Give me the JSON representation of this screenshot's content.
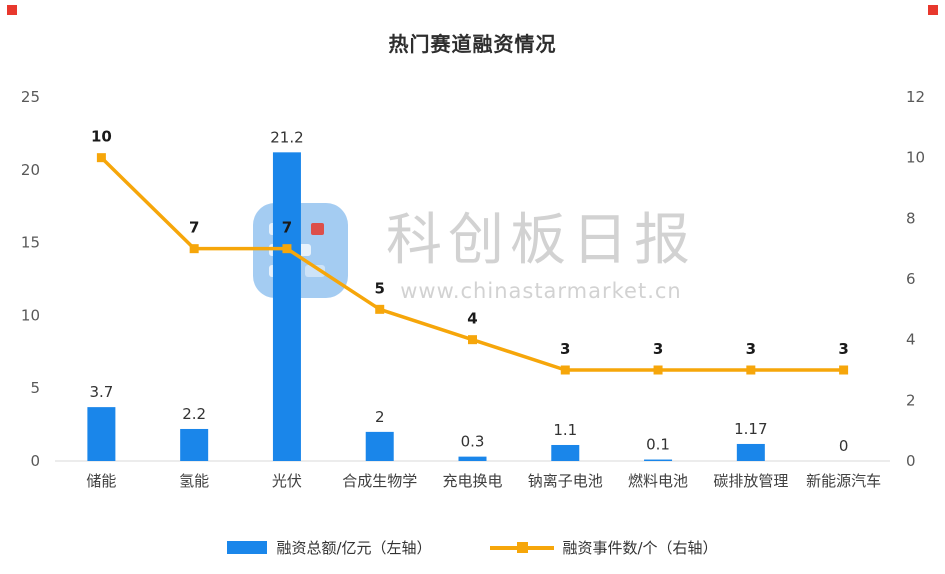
{
  "title": "热门赛道融资情况",
  "colors": {
    "bar": "#1a86ea",
    "line": "#f6a60a",
    "axis_line": "#d9d9d9",
    "tick_text": "#595959",
    "category_text": "#404040",
    "bar_label_text": "#333333",
    "line_label_text": "#1a1a1a",
    "title_text": "#2e2e2e",
    "watermark_text": "#d2d2d2",
    "legend_text": "#333333",
    "corner_mark": "#e8382d"
  },
  "chart_data": {
    "type": "bar+line",
    "title": "热门赛道融资情况",
    "categories": [
      "储能",
      "氢能",
      "光伏",
      "合成生物学",
      "充电换电",
      "钠离子电池",
      "燃料电池",
      "碳排放管理",
      "新能源汽车"
    ],
    "series": [
      {
        "name": "融资总额/亿元（左轴）",
        "type": "bar",
        "axis": "left",
        "values": [
          3.7,
          2.2,
          21.2,
          2,
          0.3,
          1.1,
          0.1,
          1.17,
          0
        ]
      },
      {
        "name": "融资事件数/个（右轴）",
        "type": "line",
        "axis": "right",
        "values": [
          10,
          7,
          7,
          5,
          4,
          3,
          3,
          3,
          3
        ]
      }
    ],
    "left_axis": {
      "label": "",
      "min": 0,
      "max": 25,
      "ticks": [
        0,
        5,
        10,
        15,
        20,
        25
      ]
    },
    "right_axis": {
      "label": "",
      "min": 0,
      "max": 12,
      "ticks": [
        0,
        2,
        4,
        6,
        8,
        10,
        12
      ]
    },
    "grid": false,
    "legend_position": "bottom"
  },
  "legend": {
    "items": [
      {
        "label": "融资总额/亿元（左轴）",
        "swatch": "bar"
      },
      {
        "label": "融资事件数/个（右轴）",
        "swatch": "line"
      }
    ]
  },
  "watermark": {
    "name": "科创板日报",
    "url": "www.chinastarmarket.cn"
  }
}
